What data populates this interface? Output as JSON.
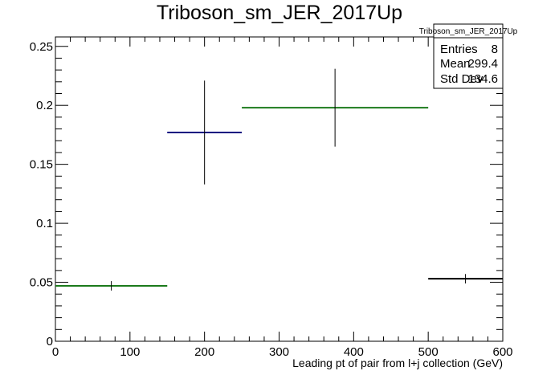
{
  "chart_data": {
    "type": "histogram",
    "title": "Triboson_sm_JER_2017Up",
    "xlabel": "Leading pt of pair from l+j collection (GeV)",
    "ylabel": "",
    "xlim": [
      0,
      600
    ],
    "ylim": [
      0,
      0.258
    ],
    "x_ticks": [
      0,
      100,
      200,
      300,
      400,
      500,
      600
    ],
    "x_tick_labels": [
      "0",
      "100",
      "200",
      "300",
      "400",
      "500",
      "600"
    ],
    "y_ticks": [
      0,
      0.05,
      0.1,
      0.15,
      0.2,
      0.25
    ],
    "y_tick_labels": [
      "0",
      "0.05",
      "0.1",
      "0.15",
      "0.2",
      "0.25"
    ],
    "grid": false,
    "bins": [
      {
        "x_low": 0,
        "x_high": 150,
        "value": 0.047,
        "error": 0.004,
        "color": "#1b7a1b"
      },
      {
        "x_low": 150,
        "x_high": 250,
        "value": 0.177,
        "error": 0.044,
        "color": "#000080"
      },
      {
        "x_low": 250,
        "x_high": 500,
        "value": 0.198,
        "error": 0.033,
        "color": "#1b7a1b"
      },
      {
        "x_low": 500,
        "x_high": 600,
        "value": 0.053,
        "error": 0.004,
        "color": "#000000"
      }
    ],
    "stats_box": {
      "title": "Triboson_sm_JER_2017Up",
      "rows": [
        {
          "label": "Entries",
          "value": "8"
        },
        {
          "label": "Mean",
          "value": "299.4"
        },
        {
          "label": "Std Dev",
          "value": "134.6"
        }
      ],
      "placement": "top-right"
    }
  }
}
